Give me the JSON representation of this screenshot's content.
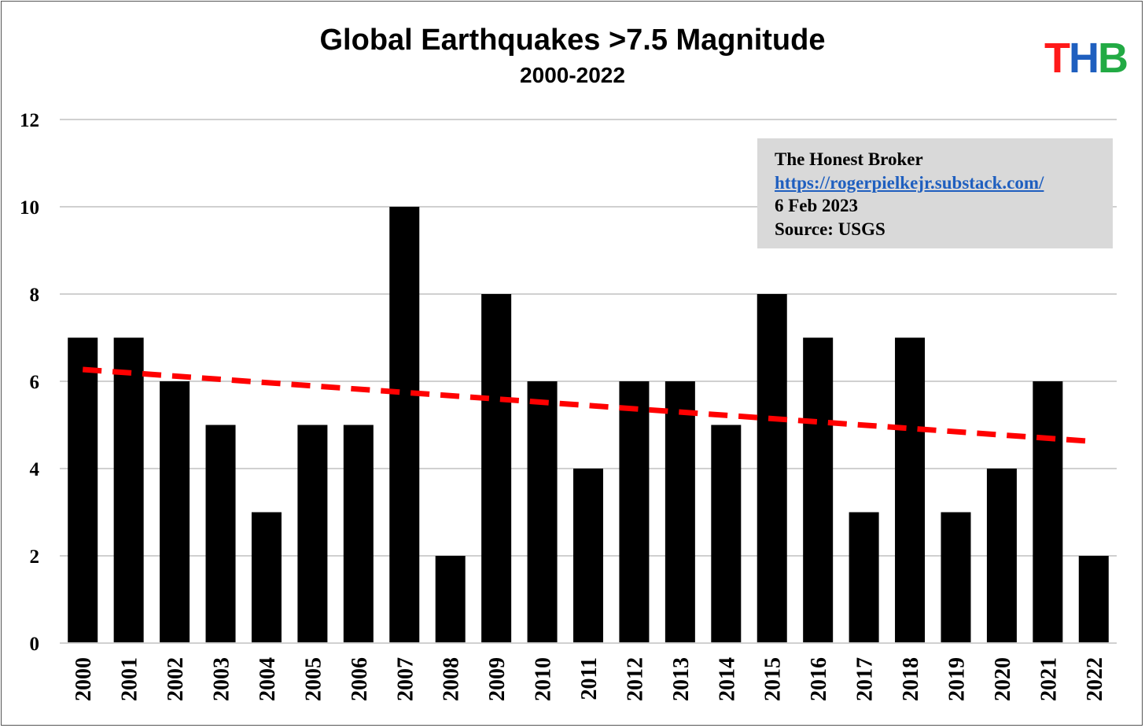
{
  "chart_data": {
    "type": "bar",
    "title": "Global Earthquakes >7.5 Magnitude",
    "subtitle": "2000-2022",
    "categories": [
      "2000",
      "2001",
      "2002",
      "2003",
      "2004",
      "2005",
      "2006",
      "2007",
      "2008",
      "2009",
      "2010",
      "2011",
      "2012",
      "2013",
      "2014",
      "2015",
      "2016",
      "2017",
      "2018",
      "2019",
      "2020",
      "2021",
      "2022"
    ],
    "values": [
      7,
      7,
      6,
      5,
      3,
      5,
      5,
      10,
      2,
      8,
      6,
      4,
      6,
      6,
      5,
      8,
      7,
      3,
      7,
      3,
      4,
      6,
      2
    ],
    "ylim": [
      0,
      12
    ],
    "yticks": [
      0,
      2,
      4,
      6,
      8,
      10,
      12
    ],
    "xlabel": "",
    "ylabel": "",
    "grid": true,
    "bar_color": "#000000",
    "trendline": {
      "style": "dashed",
      "color": "#ff0000",
      "start": {
        "x": "2000",
        "y": 6.27
      },
      "end": {
        "x": "2022",
        "y": 4.62
      }
    }
  },
  "logo": {
    "letters": [
      {
        "char": "T",
        "color": "#ff1a1a"
      },
      {
        "char": "H",
        "color": "#1f5fbf"
      },
      {
        "char": "B",
        "color": "#22aa44"
      }
    ]
  },
  "infobox": {
    "name": "The Honest Broker",
    "url": "https://rogerpielkejr.substack.com/",
    "date": "6 Feb 2023",
    "source": "Source: USGS"
  }
}
